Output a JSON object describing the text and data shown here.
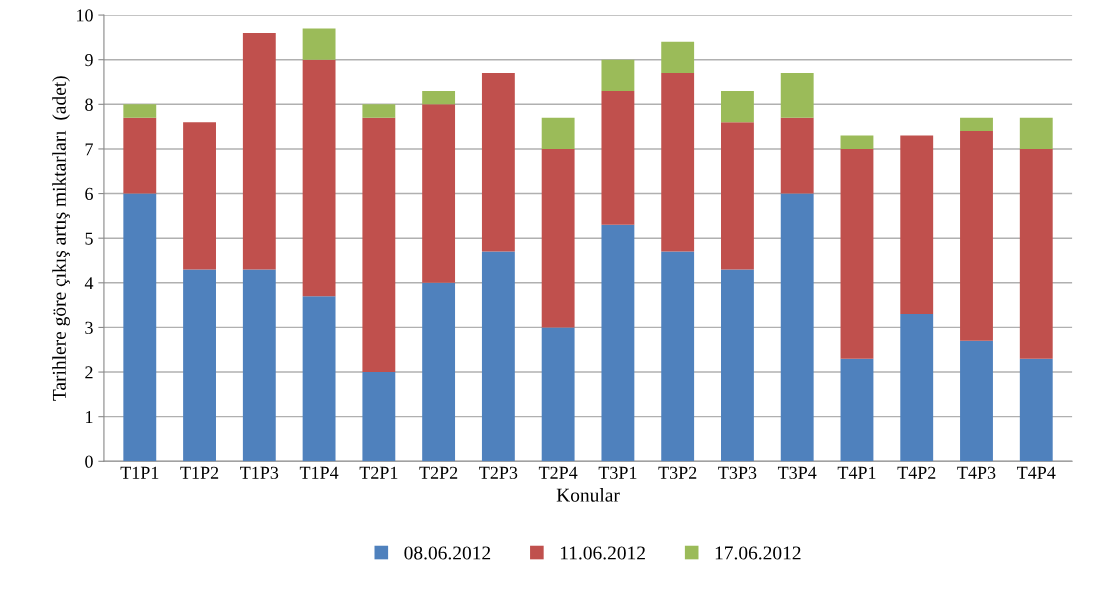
{
  "chart_data": {
    "type": "bar",
    "stacked": true,
    "xlabel": "Konular",
    "ylabel": "Tarihlere göre çıkış artış miktarları  (adet)",
    "categories": [
      "T1P1",
      "T1P2",
      "T1P3",
      "T1P4",
      "T2P1",
      "T2P2",
      "T2P3",
      "T2P4",
      "T3P1",
      "T3P2",
      "T3P3",
      "T3P4",
      "T4P1",
      "T4P2",
      "T4P3",
      "T4P4"
    ],
    "series": [
      {
        "name": "08.06.2012",
        "color": "#4f81bd",
        "values": [
          6,
          4.3,
          4.3,
          3.7,
          2,
          4,
          4.7,
          3,
          5.3,
          4.7,
          4.3,
          6,
          2.3,
          3.3,
          2.7,
          2.3
        ]
      },
      {
        "name": "11.06.2012",
        "color": "#c0504d",
        "values": [
          1.7,
          3.3,
          5.3,
          5.3,
          5.7,
          4,
          4,
          4,
          3,
          4,
          3.3,
          1.7,
          4.7,
          4,
          4.7,
          4.7
        ]
      },
      {
        "name": "17.06.2012",
        "color": "#9bbb59",
        "values": [
          0.3,
          0,
          0,
          0.7,
          0.3,
          0.3,
          0,
          0.7,
          0.7,
          0.7,
          0.7,
          1,
          0.3,
          0,
          0.3,
          0.7
        ]
      }
    ],
    "ylim": [
      0,
      10
    ],
    "yticks": [
      0,
      1,
      2,
      3,
      4,
      5,
      6,
      7,
      8,
      9,
      10
    ],
    "grid": "y",
    "legend": "bottom"
  }
}
